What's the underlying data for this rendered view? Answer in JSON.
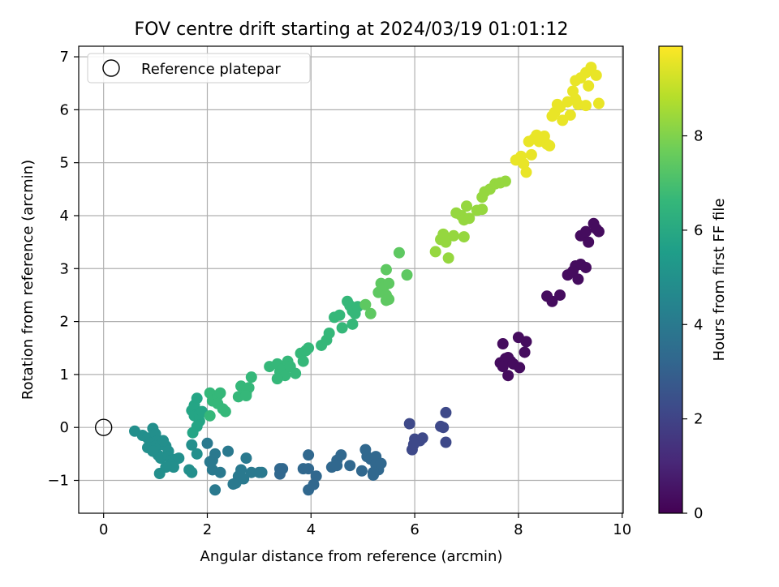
{
  "chart_data": {
    "type": "scatter",
    "title": "FOV centre drift starting at 2024/03/19 01:01:12",
    "xlabel": "Angular distance from reference (arcmin)",
    "ylabel": "Rotation from reference (arcmin)",
    "xlim": [
      -0.48,
      10.02
    ],
    "ylim": [
      -1.62,
      7.2
    ],
    "xticks": [
      0,
      2,
      4,
      6,
      8,
      10
    ],
    "yticks": [
      -1,
      0,
      1,
      2,
      3,
      4,
      5,
      6,
      7
    ],
    "grid": true,
    "legend": {
      "placement": "top-left",
      "entries": [
        "Reference platepar"
      ]
    },
    "colorbar": {
      "label": "Hours from first FF file",
      "range": [
        0,
        9.9
      ],
      "ticks": [
        0,
        2,
        4,
        6,
        8
      ],
      "colormap": "viridis"
    },
    "reference_point": {
      "x": 0,
      "y": 0,
      "label": "Reference platepar"
    },
    "series": [
      {
        "points": [
          [
            9.45,
            3.85
          ],
          [
            9.55,
            3.7
          ],
          [
            9.5,
            3.75
          ],
          [
            9.2,
            3.62
          ],
          [
            9.35,
            3.5
          ],
          [
            9.3,
            3.7
          ],
          [
            9.1,
            3.05
          ],
          [
            9.2,
            3.08
          ],
          [
            8.95,
            2.88
          ],
          [
            9.05,
            2.95
          ],
          [
            9.15,
            2.8
          ],
          [
            9.3,
            3.02
          ],
          [
            8.55,
            2.48
          ],
          [
            8.65,
            2.38
          ],
          [
            8.8,
            2.5
          ],
          [
            7.7,
            1.58
          ],
          [
            8.0,
            1.7
          ],
          [
            8.15,
            1.62
          ],
          [
            8.12,
            1.42
          ],
          [
            7.65,
            1.22
          ],
          [
            7.75,
            1.3
          ],
          [
            7.85,
            1.25
          ],
          [
            7.8,
            1.32
          ],
          [
            7.7,
            1.15
          ],
          [
            7.9,
            1.2
          ],
          [
            7.8,
            0.98
          ],
          [
            8.02,
            1.13
          ]
        ],
        "t": 0.3
      },
      {
        "points": [
          [
            6.6,
            0.28
          ],
          [
            6.55,
            0.0
          ],
          [
            6.5,
            0.02
          ],
          [
            6.6,
            -0.28
          ],
          [
            5.9,
            0.07
          ],
          [
            6.0,
            -0.22
          ],
          [
            6.1,
            -0.25
          ],
          [
            5.95,
            -0.42
          ],
          [
            6.15,
            -0.2
          ],
          [
            5.98,
            -0.32
          ]
        ],
        "t": 2.2
      },
      {
        "points": [
          [
            3.95,
            -0.52
          ],
          [
            3.85,
            -0.78
          ],
          [
            3.95,
            -0.78
          ],
          [
            4.1,
            -0.92
          ],
          [
            3.95,
            -1.18
          ],
          [
            4.05,
            -1.08
          ],
          [
            4.4,
            -0.75
          ],
          [
            4.5,
            -0.62
          ],
          [
            4.58,
            -0.52
          ],
          [
            4.5,
            -0.72
          ],
          [
            4.75,
            -0.72
          ],
          [
            5.05,
            -0.42
          ],
          [
            5.08,
            -0.55
          ],
          [
            5.15,
            -0.6
          ],
          [
            5.25,
            -0.55
          ],
          [
            5.3,
            -0.8
          ],
          [
            5.25,
            -0.7
          ],
          [
            5.35,
            -0.68
          ],
          [
            5.2,
            -0.85
          ],
          [
            4.98,
            -0.82
          ],
          [
            5.2,
            -0.9
          ],
          [
            3.4,
            -0.78
          ],
          [
            3.45,
            -0.78
          ],
          [
            3.4,
            -0.88
          ]
        ],
        "t": 3.3
      },
      {
        "points": [
          [
            2.0,
            -0.3
          ],
          [
            2.15,
            -0.5
          ],
          [
            2.1,
            -0.62
          ],
          [
            2.05,
            -0.65
          ],
          [
            2.1,
            -0.8
          ],
          [
            2.25,
            -0.85
          ],
          [
            2.4,
            -0.45
          ],
          [
            2.6,
            -0.92
          ],
          [
            2.65,
            -0.8
          ],
          [
            2.75,
            -0.58
          ],
          [
            2.85,
            -0.85
          ],
          [
            3.0,
            -0.85
          ],
          [
            2.7,
            -0.97
          ],
          [
            2.55,
            -1.05
          ],
          [
            2.15,
            -1.18
          ],
          [
            2.5,
            -1.07
          ],
          [
            3.05,
            -0.85
          ]
        ],
        "t": 4.0
      },
      {
        "points": [
          [
            0.6,
            -0.07
          ],
          [
            0.75,
            -0.15
          ],
          [
            0.85,
            -0.2
          ],
          [
            0.95,
            -0.02
          ],
          [
            1.0,
            -0.12
          ],
          [
            1.05,
            -0.25
          ],
          [
            0.9,
            -0.3
          ],
          [
            0.85,
            -0.38
          ],
          [
            1.0,
            -0.35
          ],
          [
            1.1,
            -0.32
          ],
          [
            1.2,
            -0.35
          ],
          [
            1.25,
            -0.45
          ],
          [
            1.05,
            -0.52
          ],
          [
            1.1,
            -0.58
          ],
          [
            1.25,
            -0.55
          ],
          [
            1.3,
            -0.62
          ],
          [
            1.4,
            -0.6
          ],
          [
            1.45,
            -0.58
          ],
          [
            1.3,
            -0.7
          ],
          [
            1.35,
            -0.75
          ],
          [
            1.2,
            -0.75
          ],
          [
            1.08,
            -0.87
          ],
          [
            1.65,
            -0.8
          ],
          [
            1.7,
            -0.85
          ],
          [
            1.7,
            -0.33
          ],
          [
            1.8,
            -0.5
          ],
          [
            1.15,
            -0.25
          ],
          [
            0.95,
            -0.45
          ]
        ],
        "t": 4.9
      },
      {
        "points": [
          [
            1.7,
            0.32
          ],
          [
            1.75,
            0.42
          ],
          [
            1.8,
            0.55
          ],
          [
            1.75,
            0.22
          ],
          [
            1.85,
            0.12
          ],
          [
            1.8,
            0.02
          ],
          [
            1.85,
            0.25
          ],
          [
            1.72,
            -0.1
          ],
          [
            1.9,
            0.3
          ]
        ],
        "t": 5.8
      },
      {
        "points": [
          [
            2.05,
            0.65
          ],
          [
            2.1,
            0.5
          ],
          [
            2.2,
            0.6
          ],
          [
            2.25,
            0.65
          ],
          [
            2.2,
            0.45
          ],
          [
            2.3,
            0.35
          ],
          [
            2.35,
            0.3
          ],
          [
            2.05,
            0.22
          ],
          [
            2.6,
            0.58
          ],
          [
            2.65,
            0.78
          ],
          [
            2.75,
            0.65
          ],
          [
            2.8,
            0.75
          ],
          [
            2.85,
            0.95
          ],
          [
            2.75,
            0.6
          ],
          [
            3.2,
            1.15
          ],
          [
            3.35,
            1.2
          ],
          [
            3.4,
            1.05
          ],
          [
            3.45,
            1.1
          ],
          [
            3.55,
            1.25
          ],
          [
            3.5,
            0.98
          ],
          [
            3.6,
            1.15
          ],
          [
            3.7,
            1.02
          ],
          [
            3.35,
            0.92
          ],
          [
            3.8,
            1.4
          ],
          [
            3.9,
            1.45
          ],
          [
            3.95,
            1.5
          ],
          [
            3.85,
            1.25
          ],
          [
            4.2,
            1.55
          ],
          [
            4.3,
            1.65
          ],
          [
            4.35,
            1.78
          ],
          [
            4.45,
            2.08
          ],
          [
            4.55,
            2.12
          ],
          [
            4.6,
            1.88
          ],
          [
            4.7,
            2.38
          ],
          [
            4.75,
            2.3
          ],
          [
            4.8,
            2.2
          ],
          [
            4.85,
            2.15
          ],
          [
            4.8,
            1.95
          ],
          [
            4.9,
            2.28
          ]
        ],
        "t": 6.6
      },
      {
        "points": [
          [
            5.05,
            2.32
          ],
          [
            5.15,
            2.15
          ],
          [
            5.3,
            2.55
          ],
          [
            5.35,
            2.72
          ],
          [
            5.4,
            2.65
          ],
          [
            5.45,
            2.5
          ],
          [
            5.5,
            2.42
          ],
          [
            5.45,
            2.4
          ],
          [
            5.45,
            2.98
          ],
          [
            5.5,
            2.72
          ],
          [
            5.7,
            3.3
          ],
          [
            5.85,
            2.88
          ]
        ],
        "t": 7.4
      },
      {
        "points": [
          [
            6.4,
            3.32
          ],
          [
            6.5,
            3.55
          ],
          [
            6.55,
            3.65
          ],
          [
            6.6,
            3.5
          ],
          [
            6.65,
            3.2
          ],
          [
            6.75,
            3.62
          ],
          [
            6.8,
            4.05
          ],
          [
            6.9,
            4.0
          ],
          [
            6.95,
            3.92
          ],
          [
            7.0,
            4.18
          ],
          [
            7.05,
            3.95
          ],
          [
            6.95,
            3.6
          ],
          [
            7.2,
            4.1
          ],
          [
            7.3,
            4.35
          ],
          [
            7.35,
            4.45
          ],
          [
            7.45,
            4.5
          ],
          [
            7.55,
            4.6
          ],
          [
            7.65,
            4.62
          ],
          [
            7.75,
            4.65
          ],
          [
            7.3,
            4.12
          ]
        ],
        "t": 8.3
      },
      {
        "points": [
          [
            7.95,
            5.05
          ],
          [
            8.05,
            5.12
          ],
          [
            8.1,
            4.98
          ],
          [
            8.15,
            4.82
          ],
          [
            8.2,
            5.4
          ],
          [
            8.25,
            5.15
          ],
          [
            8.3,
            5.45
          ],
          [
            8.35,
            5.52
          ],
          [
            8.4,
            5.4
          ],
          [
            8.5,
            5.5
          ],
          [
            8.55,
            5.35
          ],
          [
            8.6,
            5.32
          ],
          [
            8.65,
            5.88
          ],
          [
            8.7,
            5.95
          ],
          [
            8.75,
            6.1
          ],
          [
            8.8,
            6.05
          ],
          [
            8.85,
            5.8
          ],
          [
            8.95,
            6.15
          ],
          [
            9.05,
            6.35
          ],
          [
            9.1,
            6.2
          ],
          [
            9.15,
            6.1
          ],
          [
            9.1,
            6.55
          ],
          [
            9.2,
            6.6
          ],
          [
            9.3,
            6.7
          ],
          [
            9.35,
            6.45
          ],
          [
            9.3,
            6.08
          ],
          [
            9.4,
            6.8
          ],
          [
            9.5,
            6.65
          ],
          [
            9.55,
            6.12
          ],
          [
            9.0,
            5.9
          ]
        ],
        "t": 9.6
      }
    ]
  }
}
